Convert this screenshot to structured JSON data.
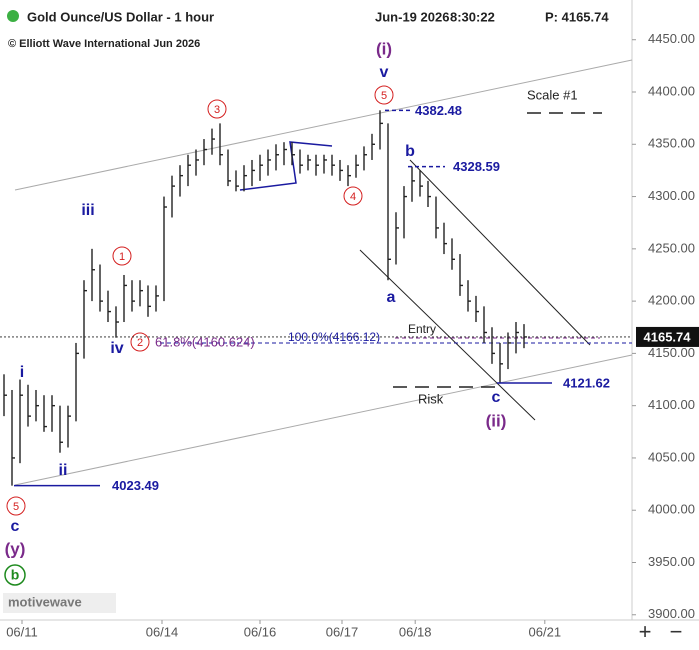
{
  "chart_data": {
    "type": "ohlc",
    "title": "Gold Ounce/US Dollar - 1 hour",
    "subtitle": "© Elliott Wave International Jun 2026",
    "date": "Jun-19 2026",
    "time": "8:30:22",
    "price_text": "P: 4165.74",
    "watermark": "motivewave",
    "last_price": 4165.74,
    "high": [
      4130,
      4115,
      4125,
      4120,
      4115,
      4110,
      4110,
      4100,
      4100,
      4160,
      4220,
      4250,
      4235,
      4210,
      4195,
      4225,
      4220,
      4220,
      4215,
      4215,
      4300,
      4320,
      4330,
      4340,
      4345,
      4355,
      4365,
      4370,
      4345,
      4325,
      4330,
      4335,
      4340,
      4345,
      4350,
      4352,
      4352,
      4345,
      4340,
      4340,
      4340,
      4340,
      4335,
      4330,
      4340,
      4348,
      4360,
      4382.48,
      4370,
      4285,
      4310,
      4328.59,
      4325,
      4315,
      4300,
      4275,
      4260,
      4245,
      4220,
      4205,
      4195,
      4175,
      4160,
      4170,
      4180,
      4178
    ],
    "low": [
      4090,
      4023.49,
      4045,
      4080,
      4085,
      4075,
      4075,
      4055,
      4060,
      4085,
      4145,
      4200,
      4190,
      4180,
      4165,
      4180,
      4190,
      4195,
      4185,
      4190,
      4200,
      4280,
      4300,
      4310,
      4320,
      4330,
      4340,
      4330,
      4310,
      4305,
      4305,
      4310,
      4315,
      4320,
      4325,
      4330,
      4330,
      4322,
      4325,
      4320,
      4322,
      4320,
      4315,
      4310,
      4318,
      4325,
      4335,
      4345,
      4220,
      4235,
      4260,
      4295,
      4300,
      4290,
      4260,
      4245,
      4230,
      4205,
      4190,
      4180,
      4160,
      4140,
      4121.62,
      4135,
      4150,
      4155
    ],
    "close": [
      4110,
      4050,
      4110,
      4090,
      4100,
      4080,
      4100,
      4065,
      4090,
      4150,
      4210,
      4230,
      4200,
      4190,
      4180,
      4215,
      4200,
      4210,
      4195,
      4205,
      4290,
      4310,
      4320,
      4330,
      4335,
      4345,
      4355,
      4340,
      4315,
      4310,
      4320,
      4325,
      4330,
      4335,
      4340,
      4345,
      4340,
      4330,
      4335,
      4330,
      4335,
      4330,
      4325,
      4320,
      4330,
      4340,
      4350,
      4370,
      4240,
      4270,
      4300,
      4315,
      4310,
      4300,
      4270,
      4255,
      4240,
      4215,
      4200,
      4190,
      4170,
      4150,
      4140,
      4160,
      4170,
      4165.74
    ],
    "color": "#222222",
    "ylim": [
      3895,
      4488
    ],
    "yticks": [
      {
        "value": 3900,
        "label": "3900.00"
      },
      {
        "value": 3950,
        "label": "3950.00"
      },
      {
        "value": 4000,
        "label": "4000.00"
      },
      {
        "value": 4050,
        "label": "4050.00"
      },
      {
        "value": 4100,
        "label": "4100.00"
      },
      {
        "value": 4150,
        "label": "4150.00"
      },
      {
        "value": 4200,
        "label": "4200.00"
      },
      {
        "value": 4250,
        "label": "4250.00"
      },
      {
        "value": 4300,
        "label": "4300.00"
      },
      {
        "value": 4350,
        "label": "4350.00"
      },
      {
        "value": 4400,
        "label": "4400.00"
      },
      {
        "value": 4450,
        "label": "4450.00"
      }
    ],
    "xlim": [
      -0.5,
      78.5
    ],
    "xticks": [
      {
        "value": 2.25,
        "label": "06/11"
      },
      {
        "value": 19.75,
        "label": "06/14"
      },
      {
        "value": 32,
        "label": "06/16"
      },
      {
        "value": 42.25,
        "label": "06/17"
      },
      {
        "value": 51.4,
        "label": "06/18"
      },
      {
        "value": 67.6,
        "label": "06/21"
      }
    ],
    "levels": [
      4382.48,
      4328.59,
      4121.62,
      4023.49
    ],
    "annotations": [
      "i",
      "ii",
      "iii",
      "iv",
      "v",
      "(i)",
      "a",
      "b",
      "c",
      "(ii)",
      "c",
      "(y)",
      "b",
      "1",
      "2",
      "3",
      "4",
      "5",
      "5",
      "61.8%(4160.624)",
      "100.0%(4166.12)",
      "Entry",
      "Risk",
      "Scale #1"
    ],
    "controls": [
      "+",
      "−"
    ]
  }
}
